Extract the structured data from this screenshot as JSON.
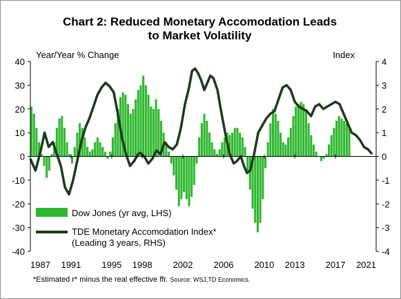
{
  "chart_data": {
    "type": "bar+line",
    "title_line1": "Chart 2: Reduced Monetary Accomodation Leads",
    "title_line2": "to Market Volatility",
    "left_axis_label": "Year/Year % Change",
    "right_axis_label": "Index",
    "x_ticks": [
      "1987",
      "1991",
      "1995",
      "1998",
      "2002",
      "2006",
      "2010",
      "2013",
      "2017",
      "2021"
    ],
    "x_range": [
      1987,
      2021
    ],
    "left_ylim": [
      -40,
      40
    ],
    "left_yticks": [
      "40",
      "30",
      "20",
      "10",
      "0",
      "-10",
      "-20",
      "-30",
      "-40"
    ],
    "right_ylim": [
      -4,
      4
    ],
    "right_yticks": [
      "4",
      "3",
      "2",
      "1",
      "0",
      "-1",
      "-2",
      "-3",
      "-4"
    ],
    "series": [
      {
        "name": "Dow Jones (yr avg, LHS)",
        "kind": "bar",
        "axis": "left",
        "color": "#2eb82e",
        "points": [
          [
            1987.0,
            21
          ],
          [
            1987.25,
            18
          ],
          [
            1987.5,
            12
          ],
          [
            1987.75,
            6
          ],
          [
            1988.0,
            1
          ],
          [
            1988.25,
            -4
          ],
          [
            1988.5,
            -9
          ],
          [
            1988.75,
            -6
          ],
          [
            1989.0,
            1
          ],
          [
            1989.25,
            6
          ],
          [
            1989.5,
            12
          ],
          [
            1989.75,
            16
          ],
          [
            1990.0,
            17
          ],
          [
            1990.25,
            12
          ],
          [
            1990.5,
            6
          ],
          [
            1990.75,
            1
          ],
          [
            1991.0,
            -3
          ],
          [
            1991.25,
            4
          ],
          [
            1991.5,
            10
          ],
          [
            1991.75,
            14
          ],
          [
            1992.0,
            12
          ],
          [
            1992.25,
            8
          ],
          [
            1992.5,
            4
          ],
          [
            1992.75,
            2
          ],
          [
            1993.0,
            3
          ],
          [
            1993.25,
            6
          ],
          [
            1993.5,
            8
          ],
          [
            1993.75,
            6
          ],
          [
            1994.0,
            4
          ],
          [
            1994.25,
            2
          ],
          [
            1994.5,
            -1
          ],
          [
            1994.75,
            2
          ],
          [
            1995.0,
            8
          ],
          [
            1995.25,
            14
          ],
          [
            1995.5,
            20
          ],
          [
            1995.75,
            25
          ],
          [
            1996.0,
            27
          ],
          [
            1996.25,
            26
          ],
          [
            1996.5,
            22
          ],
          [
            1996.75,
            18
          ],
          [
            1997.0,
            20
          ],
          [
            1997.25,
            24
          ],
          [
            1997.5,
            28
          ],
          [
            1997.75,
            30
          ],
          [
            1998.0,
            34
          ],
          [
            1998.25,
            30
          ],
          [
            1998.5,
            26
          ],
          [
            1998.75,
            21
          ],
          [
            1999.0,
            20
          ],
          [
            1999.25,
            24
          ],
          [
            1999.5,
            20
          ],
          [
            1999.75,
            15
          ],
          [
            2000.0,
            10
          ],
          [
            2000.25,
            6
          ],
          [
            2000.5,
            2
          ],
          [
            2000.75,
            -3
          ],
          [
            2001.0,
            -8
          ],
          [
            2001.25,
            -14
          ],
          [
            2001.5,
            -21
          ],
          [
            2001.75,
            -18
          ],
          [
            2002.0,
            -15
          ],
          [
            2002.25,
            -18
          ],
          [
            2002.5,
            -21
          ],
          [
            2002.75,
            -17
          ],
          [
            2003.0,
            -12
          ],
          [
            2003.25,
            -3
          ],
          [
            2003.5,
            8
          ],
          [
            2003.75,
            14
          ],
          [
            2004.0,
            18
          ],
          [
            2004.25,
            15
          ],
          [
            2004.5,
            10
          ],
          [
            2004.75,
            6
          ],
          [
            2005.0,
            3
          ],
          [
            2005.25,
            1
          ],
          [
            2005.5,
            3
          ],
          [
            2005.75,
            6
          ],
          [
            2006.0,
            8
          ],
          [
            2006.25,
            10
          ],
          [
            2006.5,
            9
          ],
          [
            2006.75,
            10
          ],
          [
            2007.0,
            12
          ],
          [
            2007.25,
            12
          ],
          [
            2007.5,
            10
          ],
          [
            2007.75,
            8
          ],
          [
            2008.0,
            4
          ],
          [
            2008.25,
            -6
          ],
          [
            2008.5,
            -14
          ],
          [
            2008.75,
            -22
          ],
          [
            2009.0,
            -28
          ],
          [
            2009.25,
            -32
          ],
          [
            2009.5,
            -28
          ],
          [
            2009.75,
            -18
          ],
          [
            2010.0,
            -5
          ],
          [
            2010.25,
            6
          ],
          [
            2010.5,
            14
          ],
          [
            2010.75,
            20
          ],
          [
            2011.0,
            18
          ],
          [
            2011.25,
            15
          ],
          [
            2011.5,
            10
          ],
          [
            2011.75,
            6
          ],
          [
            2012.0,
            5
          ],
          [
            2012.25,
            8
          ],
          [
            2012.5,
            12
          ],
          [
            2012.75,
            17
          ],
          [
            2013.0,
            21
          ],
          [
            2013.25,
            22
          ],
          [
            2013.5,
            23
          ],
          [
            2013.75,
            22
          ],
          [
            2014.0,
            20
          ],
          [
            2014.25,
            14
          ],
          [
            2014.5,
            9
          ],
          [
            2014.75,
            5
          ],
          [
            2015.0,
            2
          ],
          [
            2015.25,
            0
          ],
          [
            2015.5,
            -2
          ],
          [
            2015.75,
            -1
          ],
          [
            2016.0,
            1
          ],
          [
            2016.25,
            5
          ],
          [
            2016.5,
            9
          ],
          [
            2016.75,
            12
          ],
          [
            2017.0,
            15
          ],
          [
            2017.25,
            17
          ],
          [
            2017.5,
            16
          ],
          [
            2017.75,
            15
          ],
          [
            2018.0,
            14
          ],
          [
            2018.25,
            12
          ]
        ]
      },
      {
        "name": "TDE Monetary Accomodation Index*",
        "name_line2": "(Leading 3 years, RHS)",
        "kind": "line",
        "axis": "right",
        "color": "#1c3a1c",
        "points": [
          [
            1987.0,
            -0.1
          ],
          [
            1987.5,
            -0.6
          ],
          [
            1988.0,
            0.2
          ],
          [
            1988.4,
            1.0
          ],
          [
            1988.8,
            0.4
          ],
          [
            1989.2,
            0.6
          ],
          [
            1989.6,
            0.1
          ],
          [
            1990.0,
            -0.4
          ],
          [
            1990.4,
            -1.3
          ],
          [
            1990.8,
            -1.6
          ],
          [
            1991.2,
            -1.0
          ],
          [
            1991.6,
            -0.2
          ],
          [
            1992.0,
            0.6
          ],
          [
            1992.4,
            1.2
          ],
          [
            1992.8,
            1.6
          ],
          [
            1993.2,
            2.1
          ],
          [
            1993.6,
            2.6
          ],
          [
            1994.0,
            2.9
          ],
          [
            1994.4,
            3.1
          ],
          [
            1994.8,
            2.95
          ],
          [
            1995.2,
            2.7
          ],
          [
            1995.6,
            1.8
          ],
          [
            1996.0,
            0.8
          ],
          [
            1996.4,
            0.1
          ],
          [
            1996.8,
            -0.4
          ],
          [
            1997.2,
            -0.2
          ],
          [
            1997.6,
            0.1
          ],
          [
            1997.8,
            0.15
          ],
          [
            1998.2,
            0.0
          ],
          [
            1998.6,
            -0.3
          ],
          [
            1999.0,
            -0.1
          ],
          [
            1999.4,
            0.25
          ],
          [
            1999.8,
            0.1
          ],
          [
            2000.2,
            0.6
          ],
          [
            2000.6,
            0.4
          ],
          [
            2001.0,
            0.3
          ],
          [
            2001.4,
            0.5
          ],
          [
            2001.8,
            1.2
          ],
          [
            2002.2,
            2.2
          ],
          [
            2002.6,
            2.9
          ],
          [
            2002.9,
            3.6
          ],
          [
            2003.2,
            3.7
          ],
          [
            2003.5,
            3.5
          ],
          [
            2003.8,
            3.2
          ],
          [
            2004.1,
            2.8
          ],
          [
            2004.4,
            3.1
          ],
          [
            2004.7,
            3.4
          ],
          [
            2005.0,
            3.3
          ],
          [
            2005.4,
            2.8
          ],
          [
            2005.8,
            1.8
          ],
          [
            2006.2,
            0.9
          ],
          [
            2006.6,
            0.1
          ],
          [
            2007.0,
            -0.3
          ],
          [
            2007.3,
            -0.2
          ],
          [
            2007.7,
            0.0
          ],
          [
            2008.0,
            -0.4
          ],
          [
            2008.3,
            -0.7
          ],
          [
            2008.6,
            -0.6
          ],
          [
            2009.0,
            0.1
          ],
          [
            2009.4,
            1.0
          ],
          [
            2009.8,
            1.3
          ],
          [
            2010.2,
            1.6
          ],
          [
            2010.6,
            1.8
          ],
          [
            2011.0,
            1.9
          ],
          [
            2011.4,
            2.4
          ],
          [
            2011.8,
            2.9
          ],
          [
            2012.2,
            3.0
          ],
          [
            2012.6,
            2.8
          ],
          [
            2013.0,
            2.3
          ],
          [
            2013.4,
            2.1
          ],
          [
            2013.8,
            2.0
          ],
          [
            2014.2,
            1.9
          ],
          [
            2014.6,
            1.7
          ],
          [
            2015.0,
            2.1
          ],
          [
            2015.4,
            2.2
          ],
          [
            2015.8,
            2.0
          ],
          [
            2016.2,
            2.1
          ],
          [
            2016.6,
            2.2
          ],
          [
            2017.0,
            2.3
          ],
          [
            2017.4,
            2.2
          ],
          [
            2017.8,
            1.8
          ],
          [
            2018.2,
            1.4
          ],
          [
            2018.6,
            1.0
          ],
          [
            2019.0,
            0.9
          ],
          [
            2019.4,
            0.7
          ],
          [
            2019.8,
            0.4
          ],
          [
            2020.2,
            0.3
          ],
          [
            2020.6,
            0.1
          ]
        ]
      }
    ],
    "legend_position": "bottom-left",
    "grid": false
  },
  "footnote": {
    "text": "*Estimated r* minus the real effective ffr.",
    "source": "Source:  WSJ,TD Economics."
  }
}
